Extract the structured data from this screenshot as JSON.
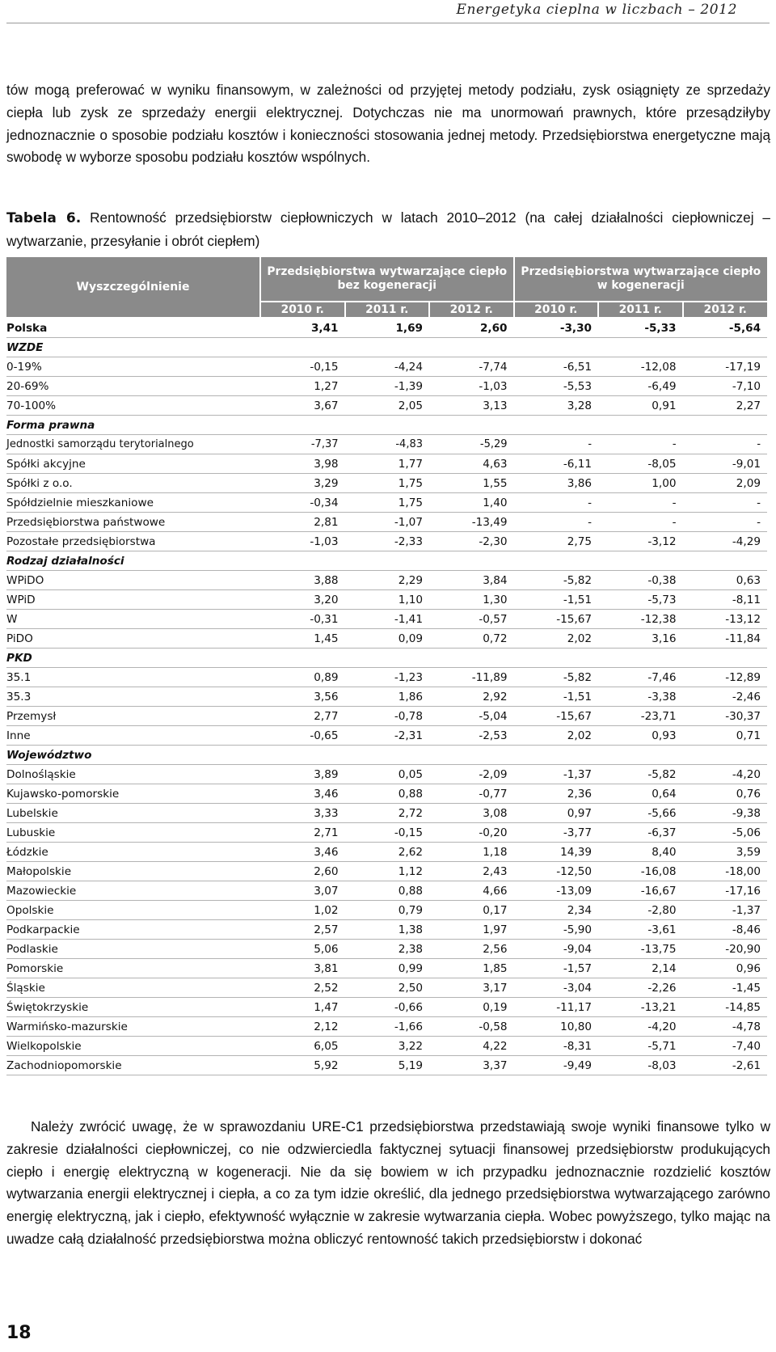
{
  "running_head": "Energetyka cieplna w liczbach – 2012",
  "intro_paragraph": "tów mogą preferować w wyniku finansowym, w zależności od przyjętej metody podziału, zysk osiągnięty ze sprzedaży ciepła lub zysk ze sprzedaży energii elektrycznej. Dotychczas nie ma unormowań prawnych, które przesądziłyby jednoznacznie o sposobie podziału kosztów i konieczności stosowania jednej metody. Przedsiębiorstwa energetyczne mają swobodę w wyborze sposobu podziału kosztów wspólnych.",
  "caption": {
    "label": "Tabela 6.",
    "text": " Rentowność przedsiębiorstw ciepłowniczych w latach 2010–2012 (na całej działalności ciepłowniczej – wytwarzanie, przesyłanie i obrót ciepłem)"
  },
  "table": {
    "stub_header": "Wyszczególnienie",
    "group_headers": [
      "Przedsiębiorstwa wytwarzające ciepło bez kogeneracji",
      "Przedsiębiorstwa wytwarzające ciepło w kogeneracji"
    ],
    "years": [
      "2010 r.",
      "2011 r.",
      "2012 r.",
      "2010 r.",
      "2011 r.",
      "2012 r."
    ],
    "rows": [
      {
        "label": "Polska",
        "values": [
          "3,41",
          "1,69",
          "2,60",
          "-3,30",
          "-5,33",
          "-5,64"
        ],
        "kind": "bold"
      },
      {
        "label": "WZDE",
        "values": [],
        "kind": "section"
      },
      {
        "label": "0-19%",
        "values": [
          "-0,15",
          "-4,24",
          "-7,74",
          "-6,51",
          "-12,08",
          "-17,19"
        ]
      },
      {
        "label": "20-69%",
        "values": [
          "1,27",
          "-1,39",
          "-1,03",
          "-5,53",
          "-6,49",
          "-7,10"
        ]
      },
      {
        "label": "70-100%",
        "values": [
          "3,67",
          "2,05",
          "3,13",
          "3,28",
          "0,91",
          "2,27"
        ]
      },
      {
        "label": "Forma prawna",
        "values": [],
        "kind": "section"
      },
      {
        "label": "Jednostki samorządu terytorialnego",
        "values": [
          "-7,37",
          "-4,83",
          "-5,29",
          "-",
          "-",
          "-"
        ],
        "kind": "tight"
      },
      {
        "label": "Spółki akcyjne",
        "values": [
          "3,98",
          "1,77",
          "4,63",
          "-6,11",
          "-8,05",
          "-9,01"
        ]
      },
      {
        "label": "Spółki z o.o.",
        "values": [
          "3,29",
          "1,75",
          "1,55",
          "3,86",
          "1,00",
          "2,09"
        ]
      },
      {
        "label": "Spółdzielnie mieszkaniowe",
        "values": [
          "-0,34",
          "1,75",
          "1,40",
          "-",
          "-",
          "-"
        ]
      },
      {
        "label": "Przedsiębiorstwa państwowe",
        "values": [
          "2,81",
          "-1,07",
          "-13,49",
          "-",
          "-",
          "-"
        ]
      },
      {
        "label": "Pozostałe przedsiębiorstwa",
        "values": [
          "-1,03",
          "-2,33",
          "-2,30",
          "2,75",
          "-3,12",
          "-4,29"
        ]
      },
      {
        "label": "Rodzaj działalności",
        "values": [],
        "kind": "section"
      },
      {
        "label": "WPiDO",
        "values": [
          "3,88",
          "2,29",
          "3,84",
          "-5,82",
          "-0,38",
          "0,63"
        ]
      },
      {
        "label": "WPiD",
        "values": [
          "3,20",
          "1,10",
          "1,30",
          "-1,51",
          "-5,73",
          "-8,11"
        ]
      },
      {
        "label": "W",
        "values": [
          "-0,31",
          "-1,41",
          "-0,57",
          "-15,67",
          "-12,38",
          "-13,12"
        ]
      },
      {
        "label": "PiDO",
        "values": [
          "1,45",
          "0,09",
          "0,72",
          "2,02",
          "3,16",
          "-11,84"
        ]
      },
      {
        "label": "PKD",
        "values": [],
        "kind": "section"
      },
      {
        "label": "35.1",
        "values": [
          "0,89",
          "-1,23",
          "-11,89",
          "-5,82",
          "-7,46",
          "-12,89"
        ]
      },
      {
        "label": "35.3",
        "values": [
          "3,56",
          "1,86",
          "2,92",
          "-1,51",
          "-3,38",
          "-2,46"
        ]
      },
      {
        "label": "Przemysł",
        "values": [
          "2,77",
          "-0,78",
          "-5,04",
          "-15,67",
          "-23,71",
          "-30,37"
        ]
      },
      {
        "label": "Inne",
        "values": [
          "-0,65",
          "-2,31",
          "-2,53",
          "2,02",
          "0,93",
          "0,71"
        ]
      },
      {
        "label": "Województwo",
        "values": [],
        "kind": "section"
      },
      {
        "label": "Dolnośląskie",
        "values": [
          "3,89",
          "0,05",
          "-2,09",
          "-1,37",
          "-5,82",
          "-4,20"
        ]
      },
      {
        "label": "Kujawsko-pomorskie",
        "values": [
          "3,46",
          "0,88",
          "-0,77",
          "2,36",
          "0,64",
          "0,76"
        ]
      },
      {
        "label": "Lubelskie",
        "values": [
          "3,33",
          "2,72",
          "3,08",
          "0,97",
          "-5,66",
          "-9,38"
        ]
      },
      {
        "label": "Lubuskie",
        "values": [
          "2,71",
          "-0,15",
          "-0,20",
          "-3,77",
          "-6,37",
          "-5,06"
        ]
      },
      {
        "label": "Łódzkie",
        "values": [
          "3,46",
          "2,62",
          "1,18",
          "14,39",
          "8,40",
          "3,59"
        ]
      },
      {
        "label": "Małopolskie",
        "values": [
          "2,60",
          "1,12",
          "2,43",
          "-12,50",
          "-16,08",
          "-18,00"
        ]
      },
      {
        "label": "Mazowieckie",
        "values": [
          "3,07",
          "0,88",
          "4,66",
          "-13,09",
          "-16,67",
          "-17,16"
        ]
      },
      {
        "label": "Opolskie",
        "values": [
          "1,02",
          "0,79",
          "0,17",
          "2,34",
          "-2,80",
          "-1,37"
        ]
      },
      {
        "label": "Podkarpackie",
        "values": [
          "2,57",
          "1,38",
          "1,97",
          "-5,90",
          "-3,61",
          "-8,46"
        ]
      },
      {
        "label": "Podlaskie",
        "values": [
          "5,06",
          "2,38",
          "2,56",
          "-9,04",
          "-13,75",
          "-20,90"
        ]
      },
      {
        "label": "Pomorskie",
        "values": [
          "3,81",
          "0,99",
          "1,85",
          "-1,57",
          "2,14",
          "0,96"
        ]
      },
      {
        "label": "Śląskie",
        "values": [
          "2,52",
          "2,50",
          "3,17",
          "-3,04",
          "-2,26",
          "-1,45"
        ]
      },
      {
        "label": "Świętokrzyskie",
        "values": [
          "1,47",
          "-0,66",
          "0,19",
          "-11,17",
          "-13,21",
          "-14,85"
        ]
      },
      {
        "label": "Warmińsko-mazurskie",
        "values": [
          "2,12",
          "-1,66",
          "-0,58",
          "10,80",
          "-4,20",
          "-4,78"
        ]
      },
      {
        "label": "Wielkopolskie",
        "values": [
          "6,05",
          "3,22",
          "4,22",
          "-8,31",
          "-5,71",
          "-7,40"
        ]
      },
      {
        "label": "Zachodniopomorskie",
        "values": [
          "5,92",
          "5,19",
          "3,37",
          "-9,49",
          "-8,03",
          "-2,61"
        ]
      }
    ]
  },
  "closing_paragraph": "Należy zwrócić uwagę, że w sprawozdaniu URE-C1 przedsiębiorstwa przedstawiają swoje wyniki finansowe tylko w zakresie działalności ciepłowniczej, co nie odzwierciedla faktycznej sytuacji finansowej przedsiębiorstw produkujących ciepło i energię elektryczną w kogeneracji. Nie da się bowiem w ich przypadku jednoznacznie rozdzielić kosztów wytwarzania energii elektrycznej i ciepła, a co za tym idzie określić, dla jednego przedsiębiorstwa wytwarzającego zarówno energię elektryczną, jak i ciepło, efektywność wyłącznie w zakresie wytwarzania ciepła. Wobec powyższego, tylko mając na uwadze całą działalność przedsiębiorstwa można obliczyć rentowność takich przedsiębiorstw i dokonać",
  "page_number": "18"
}
